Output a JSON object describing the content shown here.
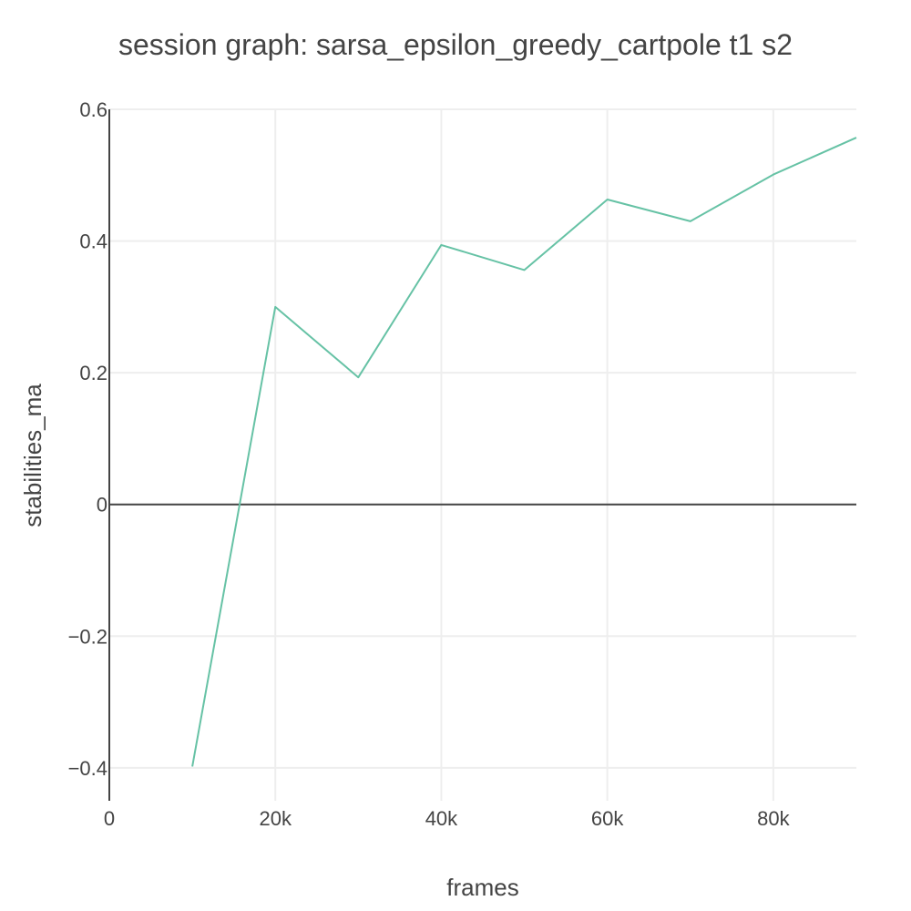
{
  "chart_data": {
    "type": "line",
    "title": "session graph: sarsa_epsilon_greedy_cartpole t1 s2",
    "xlabel": "frames",
    "ylabel": "stabilities_ma",
    "xlim": [
      0,
      90000
    ],
    "ylim": [
      -0.45,
      0.6
    ],
    "xticks": [
      {
        "value": 0,
        "label": "0"
      },
      {
        "value": 20000,
        "label": "20k"
      },
      {
        "value": 40000,
        "label": "40k"
      },
      {
        "value": 60000,
        "label": "60k"
      },
      {
        "value": 80000,
        "label": "80k"
      }
    ],
    "yticks": [
      {
        "value": -0.4,
        "label": "−0.4"
      },
      {
        "value": -0.2,
        "label": "−0.2"
      },
      {
        "value": 0,
        "label": "0"
      },
      {
        "value": 0.2,
        "label": "0.2"
      },
      {
        "value": 0.4,
        "label": "0.4"
      },
      {
        "value": 0.6,
        "label": "0.6"
      }
    ],
    "grid": true,
    "series": [
      {
        "color": "#66c2a5",
        "x": [
          10000,
          20000,
          30000,
          40000,
          50000,
          60000,
          70000,
          80000,
          90000
        ],
        "y": [
          -0.398,
          0.3,
          0.193,
          0.394,
          0.356,
          0.463,
          0.43,
          0.501,
          0.557
        ]
      }
    ]
  }
}
